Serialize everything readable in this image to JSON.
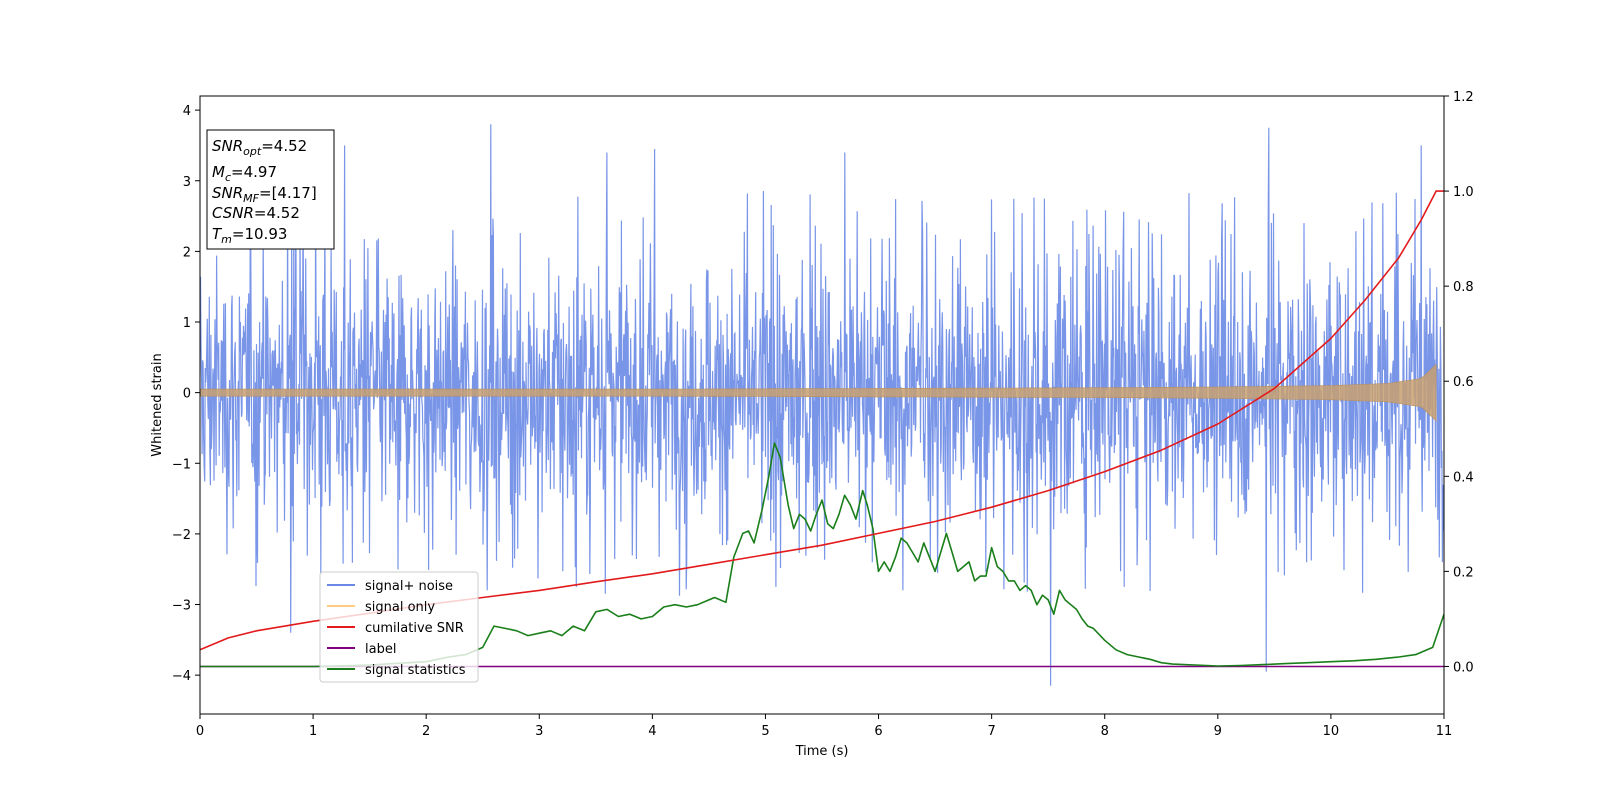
{
  "chart_data": {
    "type": "line",
    "xlabel": "Time (s)",
    "ylabel": "Whitened strain",
    "xlim": [
      0,
      11
    ],
    "ylim": [
      -4.55,
      4.2
    ],
    "y2lim": [
      -0.1,
      1.2
    ],
    "x_ticks": [
      0,
      1,
      2,
      3,
      4,
      5,
      6,
      7,
      8,
      9,
      10,
      11
    ],
    "y_ticks": [
      -4,
      -3,
      -2,
      -1,
      0,
      1,
      2,
      3,
      4
    ],
    "y2_ticks": [
      0.0,
      0.2,
      0.4,
      0.6,
      0.8,
      1.0,
      1.2
    ],
    "grid": false,
    "legend_position": "lower-left",
    "info_box": {
      "snr_opt": {
        "base": "SNR",
        "sub": "opt",
        "value": "=4.52"
      },
      "mc": {
        "base": "M",
        "sub": "c",
        "value": "=4.97"
      },
      "snr_mf": {
        "base": "SNR",
        "sub": "MF",
        "value": "=[4.17]"
      },
      "csnr": {
        "base": "CSNR",
        "sub": "",
        "value": "=4.52"
      },
      "tm": {
        "base": "T",
        "sub": "m",
        "value": "=10.93"
      }
    },
    "series": [
      {
        "key": "noise",
        "name": "signal+ noise",
        "color": "#6a89e6",
        "axis": "left",
        "envelope": {
          "x": [
            0,
            1,
            2,
            3,
            4,
            5,
            6,
            7,
            8,
            9,
            10,
            11
          ],
          "typical_peak": [
            2.2,
            2.2,
            2.2,
            2.2,
            2.2,
            2.2,
            2.2,
            2.2,
            2.2,
            2.2,
            2.2,
            2.2
          ]
        },
        "extremes": [
          {
            "x": 0.8,
            "y": -3.4
          },
          {
            "x": 1.28,
            "y": 3.5
          },
          {
            "x": 2.57,
            "y": 3.8
          },
          {
            "x": 3.6,
            "y": 3.4
          },
          {
            "x": 4.02,
            "y": 3.45
          },
          {
            "x": 5.7,
            "y": 3.4
          },
          {
            "x": 7.52,
            "y": -4.15
          },
          {
            "x": 9.43,
            "y": -3.95
          },
          {
            "x": 9.45,
            "y": 3.75
          },
          {
            "x": 10.8,
            "y": 3.5
          }
        ]
      },
      {
        "key": "signal",
        "name": "signal only",
        "color": "#ffcc80",
        "axis": "left",
        "envelope": {
          "x": [
            0,
            2,
            4,
            6,
            8,
            9,
            10,
            10.5,
            10.8,
            10.93
          ],
          "amp": [
            0.05,
            0.05,
            0.05,
            0.06,
            0.07,
            0.08,
            0.1,
            0.13,
            0.2,
            0.4
          ]
        }
      },
      {
        "key": "csnr",
        "name": "cumilative SNR",
        "color": "#e31a1c",
        "axis": "right",
        "x": [
          0,
          0.25,
          0.5,
          1,
          1.5,
          2,
          2.5,
          3,
          3.5,
          4,
          4.5,
          5,
          5.5,
          6,
          6.5,
          7,
          7.5,
          8,
          8.5,
          9,
          9.5,
          10,
          10.3,
          10.6,
          10.8,
          10.93,
          11
        ],
        "y": [
          0.035,
          0.06,
          0.075,
          0.095,
          0.112,
          0.13,
          0.145,
          0.16,
          0.178,
          0.195,
          0.215,
          0.235,
          0.255,
          0.28,
          0.305,
          0.335,
          0.37,
          0.41,
          0.455,
          0.51,
          0.585,
          0.69,
          0.77,
          0.86,
          0.94,
          1.0,
          1.0
        ]
      },
      {
        "key": "label",
        "name": "label",
        "color": "#800080",
        "axis": "right",
        "x": [
          0,
          11
        ],
        "y": [
          0,
          0
        ]
      },
      {
        "key": "stats",
        "name": "signal statistics",
        "color": "#1a7f1a",
        "axis": "right",
        "x": [
          0,
          1,
          1.5,
          2,
          2.2,
          2.35,
          2.5,
          2.6,
          2.7,
          2.8,
          2.9,
          3,
          3.1,
          3.2,
          3.3,
          3.4,
          3.5,
          3.6,
          3.7,
          3.8,
          3.9,
          4,
          4.1,
          4.2,
          4.3,
          4.4,
          4.5,
          4.55,
          4.65,
          4.72,
          4.8,
          4.85,
          4.9,
          4.97,
          5.03,
          5.08,
          5.13,
          5.2,
          5.25,
          5.3,
          5.35,
          5.4,
          5.45,
          5.5,
          5.55,
          5.6,
          5.65,
          5.7,
          5.75,
          5.8,
          5.86,
          5.9,
          5.95,
          6,
          6.05,
          6.1,
          6.15,
          6.2,
          6.25,
          6.3,
          6.35,
          6.4,
          6.45,
          6.5,
          6.55,
          6.6,
          6.65,
          6.7,
          6.75,
          6.8,
          6.85,
          6.9,
          6.95,
          7,
          7.05,
          7.1,
          7.15,
          7.2,
          7.25,
          7.3,
          7.35,
          7.4,
          7.45,
          7.5,
          7.55,
          7.6,
          7.65,
          7.7,
          7.75,
          7.8,
          7.85,
          7.9,
          8,
          8.1,
          8.2,
          8.3,
          8.4,
          8.5,
          8.6,
          8.8,
          9,
          9.2,
          9.4,
          9.6,
          9.8,
          10,
          10.2,
          10.4,
          10.6,
          10.75,
          10.9,
          11
        ],
        "y": [
          0,
          0,
          0.003,
          0.01,
          0.02,
          0.025,
          0.04,
          0.085,
          0.08,
          0.075,
          0.065,
          0.07,
          0.075,
          0.065,
          0.085,
          0.075,
          0.115,
          0.12,
          0.105,
          0.11,
          0.1,
          0.105,
          0.125,
          0.13,
          0.125,
          0.13,
          0.14,
          0.145,
          0.135,
          0.23,
          0.28,
          0.285,
          0.26,
          0.33,
          0.4,
          0.47,
          0.44,
          0.34,
          0.29,
          0.32,
          0.31,
          0.285,
          0.32,
          0.35,
          0.3,
          0.29,
          0.32,
          0.36,
          0.34,
          0.31,
          0.37,
          0.34,
          0.29,
          0.2,
          0.22,
          0.2,
          0.23,
          0.27,
          0.26,
          0.24,
          0.22,
          0.26,
          0.23,
          0.2,
          0.24,
          0.28,
          0.24,
          0.2,
          0.21,
          0.22,
          0.18,
          0.19,
          0.19,
          0.25,
          0.21,
          0.2,
          0.18,
          0.18,
          0.16,
          0.17,
          0.16,
          0.13,
          0.15,
          0.14,
          0.11,
          0.16,
          0.14,
          0.13,
          0.12,
          0.1,
          0.085,
          0.08,
          0.055,
          0.035,
          0.025,
          0.02,
          0.015,
          0.008,
          0.005,
          0.003,
          0.001,
          0.002,
          0.004,
          0.006,
          0.008,
          0.01,
          0.012,
          0.015,
          0.02,
          0.025,
          0.04,
          0.11
        ]
      }
    ]
  }
}
